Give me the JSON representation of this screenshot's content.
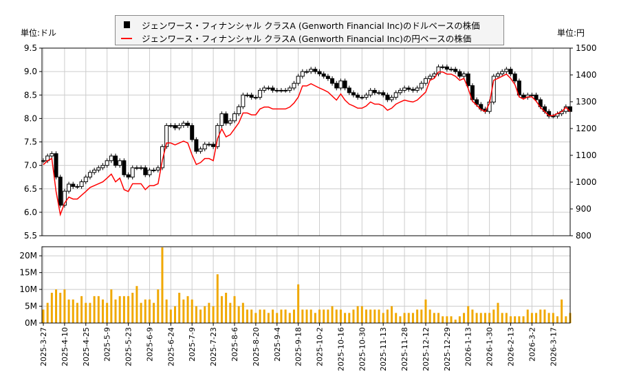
{
  "units": {
    "left": "単位:ドル",
    "right": "単位:円"
  },
  "chart_data": [
    {
      "type": "candlestick+line",
      "legend_position": "top-center",
      "grid": true,
      "series": [
        {
          "name": "ジェンワース・フィナンシャル クラスA (Genworth Financial Inc)のドルベースの株価",
          "color": "#000000",
          "axis": "left",
          "style": "candlestick",
          "close": [
            7.1,
            7.2,
            7.25,
            6.75,
            6.15,
            6.45,
            6.6,
            6.55,
            6.55,
            6.65,
            6.75,
            6.85,
            6.9,
            6.95,
            7.0,
            7.1,
            7.2,
            7.0,
            7.1,
            6.8,
            6.75,
            6.95,
            6.95,
            6.95,
            6.8,
            6.9,
            6.9,
            6.95,
            7.4,
            7.85,
            7.85,
            7.8,
            7.85,
            7.9,
            7.85,
            7.55,
            7.3,
            7.35,
            7.45,
            7.45,
            7.4,
            7.85,
            8.1,
            7.9,
            7.95,
            8.1,
            8.25,
            8.5,
            8.5,
            8.45,
            8.45,
            8.6,
            8.65,
            8.65,
            8.6,
            8.6,
            8.6,
            8.6,
            8.65,
            8.75,
            8.9,
            9.0,
            9.0,
            9.05,
            9.0,
            8.95,
            8.9,
            8.85,
            8.75,
            8.65,
            8.8,
            8.65,
            8.55,
            8.5,
            8.45,
            8.45,
            8.5,
            8.6,
            8.55,
            8.55,
            8.5,
            8.4,
            8.45,
            8.55,
            8.6,
            8.65,
            8.62,
            8.6,
            8.65,
            8.75,
            8.85,
            8.9,
            8.95,
            9.1,
            9.1,
            9.05,
            9.05,
            9.0,
            8.9,
            8.95,
            8.7,
            8.4,
            8.3,
            8.2,
            8.15,
            8.35,
            8.9,
            8.95,
            9.0,
            9.05,
            8.95,
            8.8,
            8.5,
            8.45,
            8.5,
            8.5,
            8.4,
            8.25,
            8.15,
            8.05,
            8.05,
            8.1,
            8.15,
            8.25,
            8.15
          ]
        },
        {
          "name": "ジェンワース・フィナンシャル クラスA (Genworth Financial Inc)の円ベースの株価",
          "color": "#ff0000",
          "axis": "right",
          "style": "line",
          "values": [
            1065,
            1080,
            1088,
            965,
            879,
            922,
            944,
            937,
            937,
            951,
            965,
            980,
            987,
            994,
            1001,
            1015,
            1030,
            1001,
            1015,
            972,
            965,
            994,
            994,
            994,
            972,
            987,
            987,
            994,
            1080,
            1146,
            1146,
            1139,
            1146,
            1153,
            1146,
            1102,
            1066,
            1073,
            1088,
            1088,
            1080,
            1162,
            1199,
            1169,
            1177,
            1199,
            1221,
            1258,
            1258,
            1251,
            1251,
            1273,
            1280,
            1280,
            1273,
            1273,
            1273,
            1273,
            1280,
            1295,
            1317,
            1359,
            1359,
            1367,
            1359,
            1351,
            1344,
            1336,
            1321,
            1306,
            1329,
            1306,
            1291,
            1284,
            1276,
            1276,
            1284,
            1299,
            1291,
            1291,
            1284,
            1268,
            1276,
            1291,
            1299,
            1306,
            1302,
            1299,
            1306,
            1321,
            1336,
            1380,
            1387,
            1411,
            1411,
            1403,
            1403,
            1395,
            1380,
            1387,
            1349,
            1302,
            1287,
            1271,
            1263,
            1294,
            1380,
            1387,
            1395,
            1403,
            1387,
            1364,
            1318,
            1310,
            1318,
            1318,
            1302,
            1279,
            1263,
            1248,
            1248,
            1256,
            1263,
            1279,
            1263
          ]
        }
      ],
      "y_left": {
        "range": [
          5.5,
          9.5
        ],
        "ticks": [
          "9.5",
          "9.0",
          "8.5",
          "8.0",
          "7.5",
          "7.0",
          "6.5",
          "6.0",
          "5.5"
        ]
      },
      "y_right": {
        "range": [
          800,
          1500
        ],
        "ticks": [
          "1500",
          "1400",
          "1300",
          "1200",
          "1100",
          "1000",
          "900",
          "800"
        ]
      }
    },
    {
      "type": "bar",
      "color": "#f0a800",
      "values_millions": [
        4,
        6,
        9,
        10,
        9,
        10,
        7,
        7,
        6,
        8,
        6,
        6,
        8,
        8,
        7,
        6,
        10,
        7,
        8,
        8,
        8,
        9,
        11,
        6,
        7,
        7,
        6,
        10,
        22.5,
        7,
        4,
        5,
        9,
        7,
        8,
        7,
        5,
        4,
        5,
        6,
        5,
        14.5,
        8,
        9,
        6,
        8,
        5,
        6,
        4,
        4,
        3,
        4,
        4,
        3,
        4,
        3,
        4,
        4,
        3,
        4,
        11.5,
        4,
        4,
        4,
        3,
        4,
        4,
        4,
        5,
        4,
        4,
        3,
        3,
        4,
        5,
        5,
        4,
        4,
        4,
        4,
        3,
        4,
        5,
        3,
        2,
        3,
        3,
        3,
        4,
        4,
        7,
        4,
        3,
        3,
        2,
        2,
        2,
        1,
        2,
        3,
        5,
        4,
        3,
        3,
        3,
        3,
        4,
        6,
        3,
        3,
        2,
        2,
        2,
        2,
        4,
        3,
        3,
        4,
        4,
        3,
        3,
        2,
        7,
        2,
        3
      ],
      "y_range": [
        0,
        22.7
      ],
      "y_ticks": [
        "0M",
        "5M",
        "10M",
        "15M",
        "20M"
      ]
    }
  ],
  "x_ticks": [
    "2025-3-27",
    "2025-4-10",
    "2025-4-25",
    "2025-5-9",
    "2025-5-23",
    "2025-6-9",
    "2025-6-24",
    "2025-7-9",
    "2025-7-23",
    "2025-8-6",
    "2025-8-20",
    "2025-9-4",
    "2025-9-18",
    "2025-10-2",
    "2025-10-16",
    "2025-10-30",
    "2025-11-13",
    "2025-11-28",
    "2025-12-12",
    "2025-12-29",
    "2026-1-13",
    "2026-1-30",
    "2026-2-13",
    "2026-3-2",
    "2026-3-17"
  ]
}
